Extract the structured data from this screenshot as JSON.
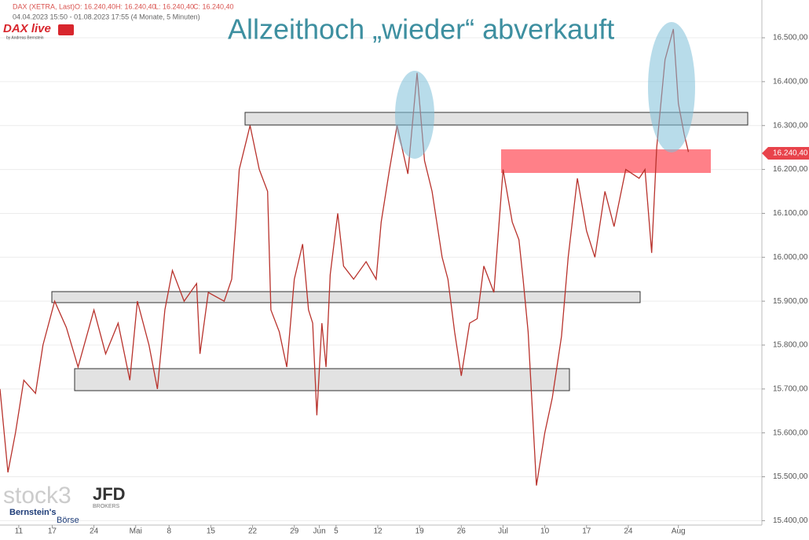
{
  "chart_data": {
    "type": "line",
    "title": "Allzeithoch „wieder“ abverkauft",
    "header": [
      "DAX (XETRA, Last)",
      "O: 16.240,40",
      "H: 16.240,40",
      "L: 16.240,40",
      "C: 16.240,40"
    ],
    "period": "04.04.2023 15:50 - 01.08.2023 17:55  (4 Monate, 5 Minuten)",
    "logo": "DAX live",
    "logo_sub": "by Andreas Bernstein",
    "watermarks": [
      "stock3",
      "JFD",
      "BROKERS",
      "Bernstein's",
      "Börse"
    ],
    "last_label": "16.240,40",
    "color": "#b8322c",
    "x": [
      0.75,
      1.7,
      2.6,
      3.6,
      5,
      5.9,
      7.3,
      8.7,
      10.1,
      12,
      13.4,
      14.9,
      16.3,
      17.2,
      18.6,
      19.6,
      20.5,
      21.4,
      22.8,
      24.3,
      24.7,
      25.7,
      27.6,
      28.5,
      29,
      29.4,
      30.7,
      31.8,
      32.8,
      33.2,
      34.2,
      35.1,
      36,
      37,
      37.7,
      38.2,
      38.7,
      39.3,
      39.8,
      40.3,
      41.2,
      41.9,
      43.1,
      44.6,
      45.8,
      46.4,
      47.4,
      48.3,
      49.6,
      50.7,
      51.6,
      52.5,
      53.7,
      54.4,
      55.2,
      56,
      57,
      57.9,
      58.7,
      59.9,
      61,
      62.1,
      62.9,
      63.4,
      64,
      65,
      66,
      66.9,
      68,
      68.8,
      69.9,
      71,
      72,
      73.2,
      74.3,
      75.7,
      77.3,
      78,
      78.8,
      79.4,
      80.4,
      81.4,
      82,
      82.7,
      83.2
    ],
    "values": [
      15700,
      15510,
      15600,
      15720,
      15690,
      15800,
      15900,
      15840,
      15750,
      15880,
      15780,
      15850,
      15720,
      15900,
      15800,
      15700,
      15880,
      15970,
      15900,
      15940,
      15780,
      15920,
      15900,
      15950,
      16080,
      16200,
      16300,
      16200,
      16150,
      15880,
      15830,
      15750,
      15950,
      16030,
      15880,
      15850,
      15640,
      15850,
      15750,
      15960,
      16100,
      15980,
      15950,
      15990,
      15950,
      16080,
      16200,
      16300,
      16190,
      16420,
      16220,
      16150,
      16000,
      15950,
      15830,
      15730,
      15850,
      15860,
      15980,
      15920,
      16200,
      16080,
      16040,
      15950,
      15830,
      15480,
      15600,
      15680,
      15820,
      16000,
      16180,
      16060,
      16000,
      16150,
      16070,
      16200,
      16180,
      16200,
      16010,
      16250,
      16450,
      16520,
      16350,
      16280,
      16240
    ],
    "xlim": [
      0.75,
      92
    ],
    "xticks": [
      {
        "value": 3,
        "label": "11"
      },
      {
        "value": 7,
        "label": "17"
      },
      {
        "value": 12,
        "label": "24"
      },
      {
        "value": 17,
        "label": "Mai"
      },
      {
        "value": 21,
        "label": "8"
      },
      {
        "value": 26,
        "label": "15"
      },
      {
        "value": 31,
        "label": "22"
      },
      {
        "value": 36,
        "label": "29"
      },
      {
        "value": 39,
        "label": "Jun"
      },
      {
        "value": 41,
        "label": "5"
      },
      {
        "value": 46,
        "label": "12"
      },
      {
        "value": 51,
        "label": "19"
      },
      {
        "value": 56,
        "label": "26"
      },
      {
        "value": 61,
        "label": "Jul"
      },
      {
        "value": 66,
        "label": "10"
      },
      {
        "value": 71,
        "label": "17"
      },
      {
        "value": 76,
        "label": "24"
      },
      {
        "value": 82,
        "label": "Aug"
      }
    ],
    "ylim": [
      15390,
      16586
    ],
    "yticks": [
      {
        "value": 15400,
        "label": "15.400,00"
      },
      {
        "value": 15500,
        "label": "15.500,00"
      },
      {
        "value": 15600,
        "label": "15.600,00"
      },
      {
        "value": 15700,
        "label": "15.700,00"
      },
      {
        "value": 15800,
        "label": "15.800,00"
      },
      {
        "value": 15900,
        "label": "15.900,00"
      },
      {
        "value": 16000,
        "label": "16.000,00"
      },
      {
        "value": 16100,
        "label": "16.100,00"
      },
      {
        "value": 16200,
        "label": "16.200,00"
      },
      {
        "value": 16300,
        "label": "16.300,00"
      },
      {
        "value": 16400,
        "label": "16.400,00"
      },
      {
        "value": 16500,
        "label": "16.500,00"
      }
    ],
    "grid": true
  }
}
